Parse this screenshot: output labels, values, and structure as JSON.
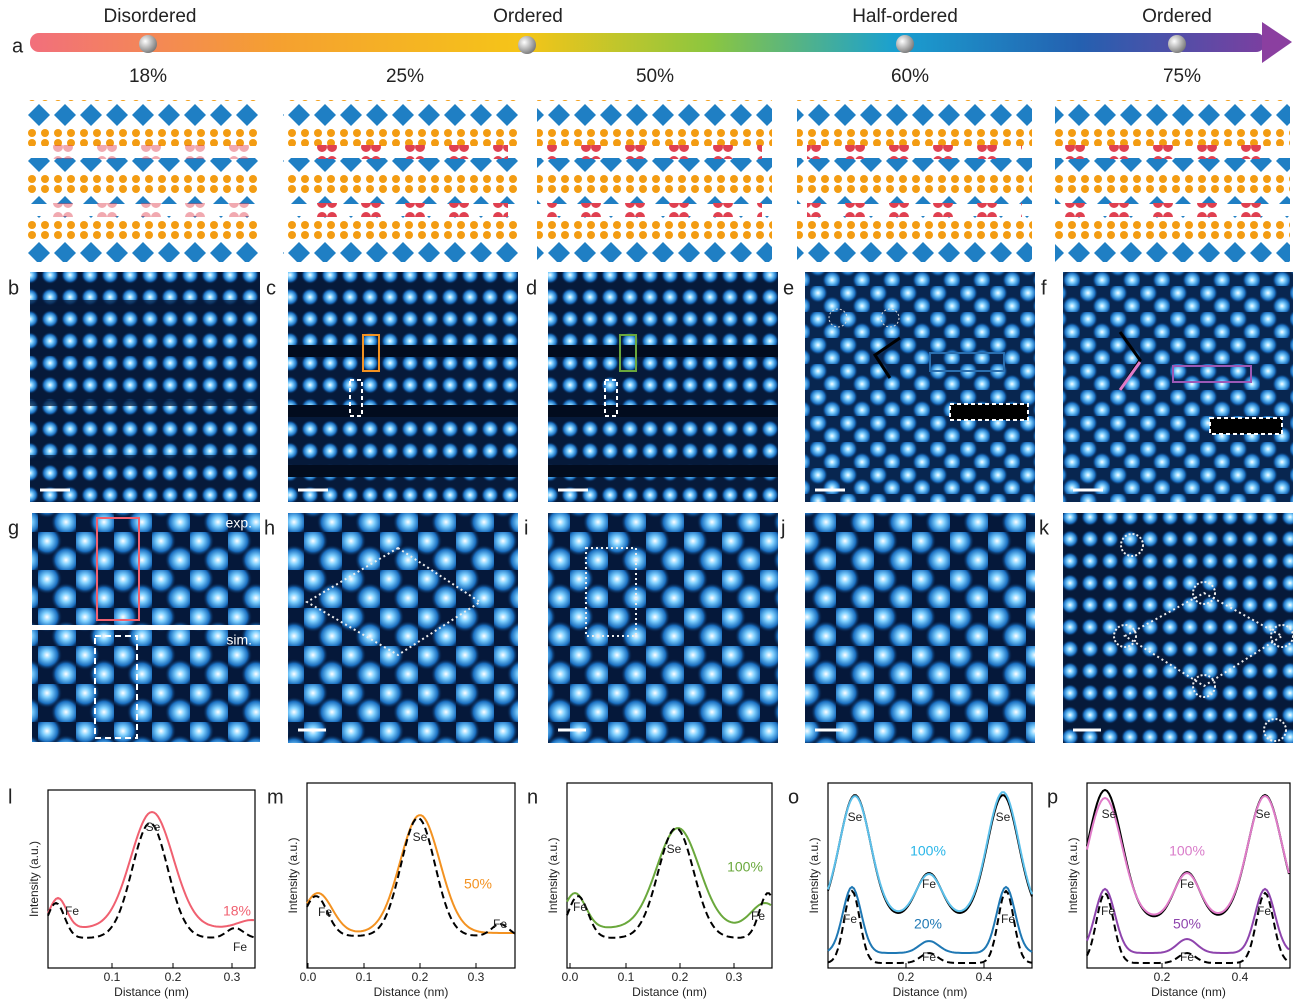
{
  "figure": {
    "a": {
      "label": "a",
      "phases": [
        "Disordered",
        "Ordered",
        "Half-ordered",
        "Ordered"
      ],
      "fractions": [
        "18%",
        "25%",
        "50%",
        "60%",
        "75%"
      ]
    },
    "image_panels": [
      "b",
      "c",
      "d",
      "e",
      "f",
      "g",
      "h",
      "i",
      "j",
      "k"
    ],
    "g_insets": [
      "exp.",
      "sim."
    ],
    "profiles": [
      {
        "label": "l",
        "y_label": "Intensity (a.u.)",
        "x_label": "Distance (nm)",
        "xticks": [
          "0.1",
          "0.2",
          "0.3"
        ],
        "annotations": [
          "Se",
          "Fe",
          "Fe",
          "18%"
        ]
      },
      {
        "label": "m",
        "y_label": "Intensity (a.u.)",
        "x_label": "Distance (nm)",
        "xticks": [
          "0.0",
          "0.1",
          "0.2",
          "0.3"
        ],
        "annotations": [
          "Se",
          "Fe",
          "Fe",
          "50%"
        ]
      },
      {
        "label": "n",
        "y_label": "Intensity (a.u.)",
        "x_label": "Distance (nm)",
        "xticks": [
          "0.0",
          "0.1",
          "0.2",
          "0.3"
        ],
        "annotations": [
          "Se",
          "Fe",
          "Fe",
          "100%"
        ]
      },
      {
        "label": "o",
        "y_label": "Intensity (a.u.)",
        "x_label": "Distance (nm)",
        "xticks": [
          "0.2",
          "0.4"
        ],
        "annotations": [
          "Se",
          "Se",
          "Fe",
          "Fe",
          "Fe",
          "Fe",
          "100%",
          "20%"
        ]
      },
      {
        "label": "p",
        "y_label": "Intensity (a.u.)",
        "x_label": "Distance (nm)",
        "xticks": [
          "0.2",
          "0.4"
        ],
        "annotations": [
          "Se",
          "Se",
          "Fe",
          "Fe",
          "Fe",
          "Fe",
          "100%",
          "50%"
        ]
      }
    ]
  }
}
